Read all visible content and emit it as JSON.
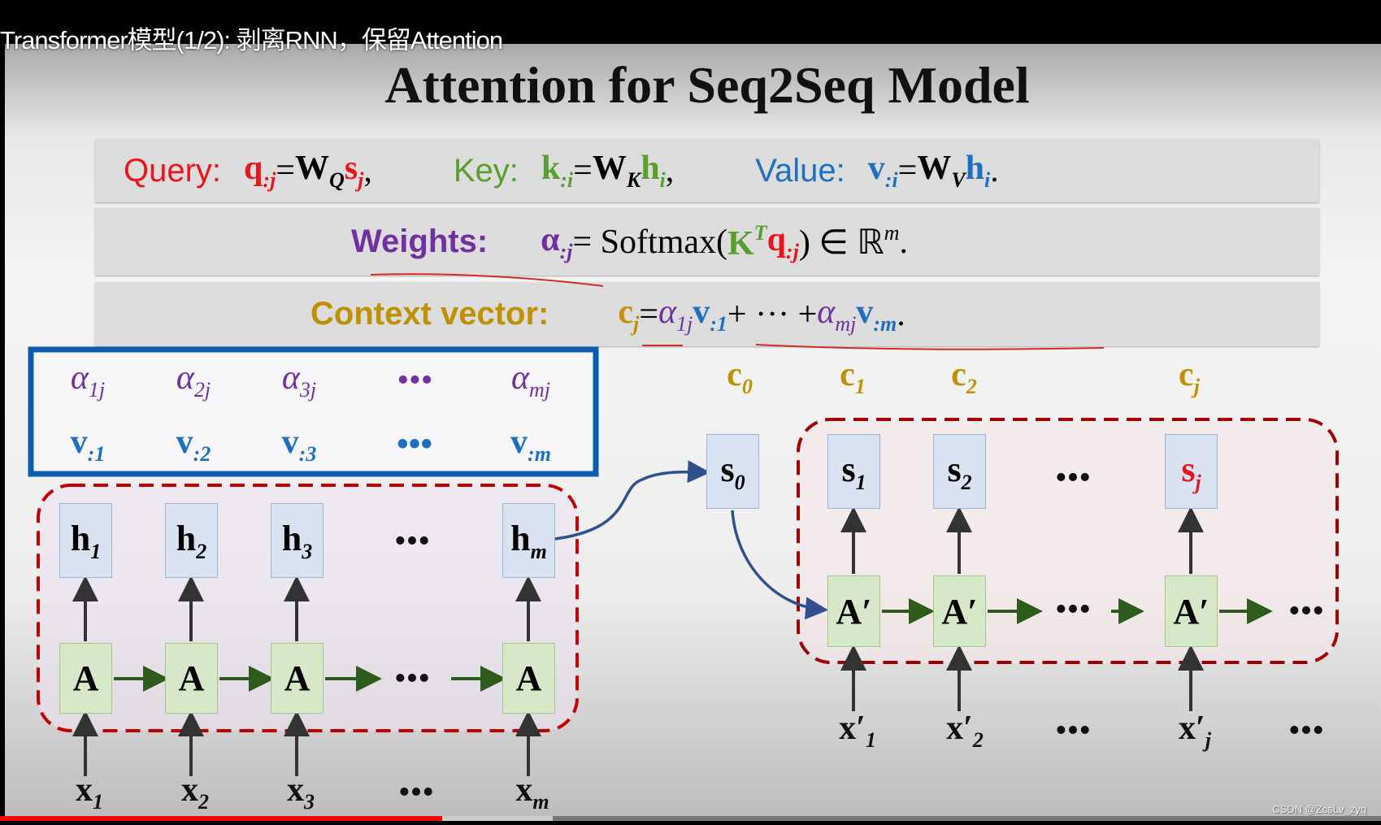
{
  "video": {
    "title": "Transformer模型(1/2): 剥离RNN，保留Attention",
    "progress_percent": 32,
    "buffered_percent": 40,
    "watermark": "CSDN @ZcsLv_zyq"
  },
  "colors": {
    "query": "#e8151b",
    "key": "#5a9e2f",
    "value": "#1f6fc0",
    "weights": "#7030a0",
    "context": "#bf9000",
    "annotation": "#d42a2a",
    "arrow": "#2f4f8f",
    "green_arrow": "#2e5a1c"
  },
  "slide": {
    "title": "Attention for Seq2Seq Model",
    "rows": [
      {
        "label": "Query:",
        "label_color": "query",
        "tokens": [
          {
            "t": "q",
            "c": "query",
            "b": 1,
            "sub": ":j"
          },
          {
            "t": " = "
          },
          {
            "t": "W",
            "b": 1,
            "sub": "Q"
          },
          {
            "t": "s",
            "c": "query",
            "b": 1,
            "sub": "j"
          },
          {
            "t": ",",
            "gap": 1
          },
          {
            "label": "Key:",
            "c": "key"
          },
          {
            "t": "k",
            "c": "key",
            "b": 1,
            "sub": ":i"
          },
          {
            "t": " = "
          },
          {
            "t": "W",
            "b": 1,
            "sub": "K"
          },
          {
            "t": "h",
            "c": "key",
            "b": 1,
            "sub": "i"
          },
          {
            "t": ",",
            "gap": 1
          },
          {
            "label": "Value:",
            "c": "value"
          },
          {
            "t": "v",
            "c": "value",
            "b": 1,
            "sub": ":i"
          },
          {
            "t": " = "
          },
          {
            "t": "W",
            "b": 1,
            "sub": "V"
          },
          {
            "t": "h",
            "c": "value",
            "b": 1,
            "sub": "i"
          },
          {
            "t": "."
          }
        ]
      },
      {
        "label": "Weights:",
        "label_color": "weights",
        "tokens": [
          {
            "t": "α",
            "c": "weights",
            "b": 1,
            "sub": ":j"
          },
          {
            "t": " = Softmax("
          },
          {
            "t": "K",
            "c": "key",
            "b": 1,
            "sup": "T"
          },
          {
            "t": "q",
            "c": "query",
            "b": 1,
            "sub": ":j"
          },
          {
            "t": ") ∈ ℝ"
          },
          {
            "t": "",
            "sup": "m"
          },
          {
            "t": "."
          }
        ]
      },
      {
        "label": "Context vector:",
        "label_color": "context",
        "tokens": [
          {
            "t": "c",
            "c": "context",
            "b": 1,
            "sub": "j"
          },
          {
            "t": " = "
          },
          {
            "t": "α",
            "c": "weights",
            "i": 1,
            "sub": "1j"
          },
          {
            "t": "v",
            "c": "value",
            "b": 1,
            "sub": ":1"
          },
          {
            "t": " + ··· + "
          },
          {
            "t": "α",
            "c": "weights",
            "i": 1,
            "sub": "mj"
          },
          {
            "t": "v",
            "c": "value",
            "b": 1,
            "sub": ":m"
          },
          {
            "t": "."
          }
        ]
      }
    ],
    "alphas": [
      {
        "t": "α",
        "sub": "1j"
      },
      {
        "t": "α",
        "sub": "2j"
      },
      {
        "t": "α",
        "sub": "3j"
      },
      {
        "t": "•••"
      },
      {
        "t": "α",
        "sub": "mj"
      }
    ],
    "values": [
      {
        "t": "v",
        "sub": ":1"
      },
      {
        "t": "v",
        "sub": ":2"
      },
      {
        "t": "v",
        "sub": ":3"
      },
      {
        "t": "•••"
      },
      {
        "t": "v",
        "sub": ":m"
      }
    ],
    "encoder": {
      "h": [
        {
          "t": "h",
          "sub": "1"
        },
        {
          "t": "h",
          "sub": "2"
        },
        {
          "t": "h",
          "sub": "3"
        },
        {
          "t": "•••"
        },
        {
          "t": "h",
          "sub": "m"
        }
      ],
      "cell": "A",
      "x": [
        {
          "t": "x",
          "sub": "1"
        },
        {
          "t": "x",
          "sub": "2"
        },
        {
          "t": "x",
          "sub": "3"
        },
        {
          "t": "•••"
        },
        {
          "t": "x",
          "sub": "m"
        }
      ]
    },
    "decoder": {
      "s0": {
        "t": "s",
        "sub": "0"
      },
      "c": [
        {
          "t": "c",
          "sub": "0"
        },
        {
          "t": "c",
          "sub": "1"
        },
        {
          "t": "c",
          "sub": "2"
        },
        {
          "t": "c",
          "sub": "j"
        }
      ],
      "s": [
        {
          "t": "s",
          "sub": "1"
        },
        {
          "t": "s",
          "sub": "2"
        },
        {
          "t": "•••"
        },
        {
          "t": "s",
          "sub": "j"
        }
      ],
      "cell": "A′",
      "x": [
        {
          "t": "x′",
          "sub": "1"
        },
        {
          "t": "x′",
          "sub": "2"
        },
        {
          "t": "•••"
        },
        {
          "t": "x′",
          "sub": "j"
        },
        {
          "t": "•••"
        }
      ]
    }
  }
}
